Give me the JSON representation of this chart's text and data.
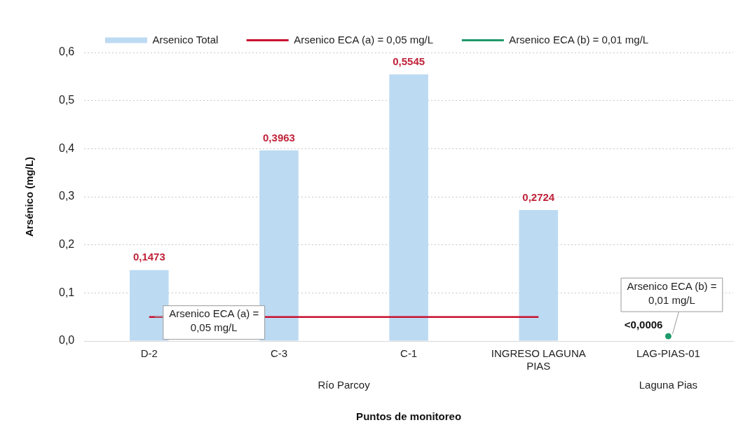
{
  "chart_data": {
    "type": "bar",
    "xlabel": "Puntos de monitoreo",
    "ylabel": "Arsénico (mg/L)",
    "categories": [
      "D-2",
      "C-3",
      "C-1",
      "INGRESO LAGUNA PIAS",
      "LAG-PIAS-01"
    ],
    "series": [
      {
        "name": "Arsenico Total",
        "color": "#bcdaf2",
        "values": [
          0.1473,
          0.3963,
          0.5545,
          0.2724,
          0.0006
        ],
        "value_labels": [
          "0,1473",
          "0,3963",
          "0,5545",
          "0,2724",
          "<0,0006"
        ]
      },
      {
        "name": "Arsenico ECA (a) = 0,05 mg/L",
        "type": "line",
        "color": "#c8102e",
        "values": [
          0.05,
          0.05,
          0.05,
          0.05,
          null
        ]
      },
      {
        "name": "Arsenico ECA (b) = 0,01 mg/L",
        "type": "line",
        "color": "#1e9a6a",
        "marker": "circle",
        "values": [
          null,
          null,
          null,
          null,
          0.01
        ]
      }
    ],
    "ylim": [
      0,
      0.6
    ],
    "yticks": [
      {
        "value": 0,
        "label": "0,0"
      },
      {
        "value": 0.1,
        "label": "0,1"
      },
      {
        "value": 0.2,
        "label": "0,2"
      },
      {
        "value": 0.3,
        "label": "0,3"
      },
      {
        "value": 0.4,
        "label": "0,4"
      },
      {
        "value": 0.5,
        "label": "0,5"
      },
      {
        "value": 0.6,
        "label": "0,6"
      }
    ],
    "grid": "y",
    "legend": "top",
    "annotations": [
      {
        "text": "Arsenico ECA (a) = 0,05 mg/L",
        "x": "D-2",
        "y": 0.05
      },
      {
        "text": "Arsenico ECA (b) = 0,01 mg/L",
        "x": "LAG-PIAS-01",
        "y": 0.01
      },
      "Río Parcoy",
      "Laguna Pias"
    ]
  }
}
